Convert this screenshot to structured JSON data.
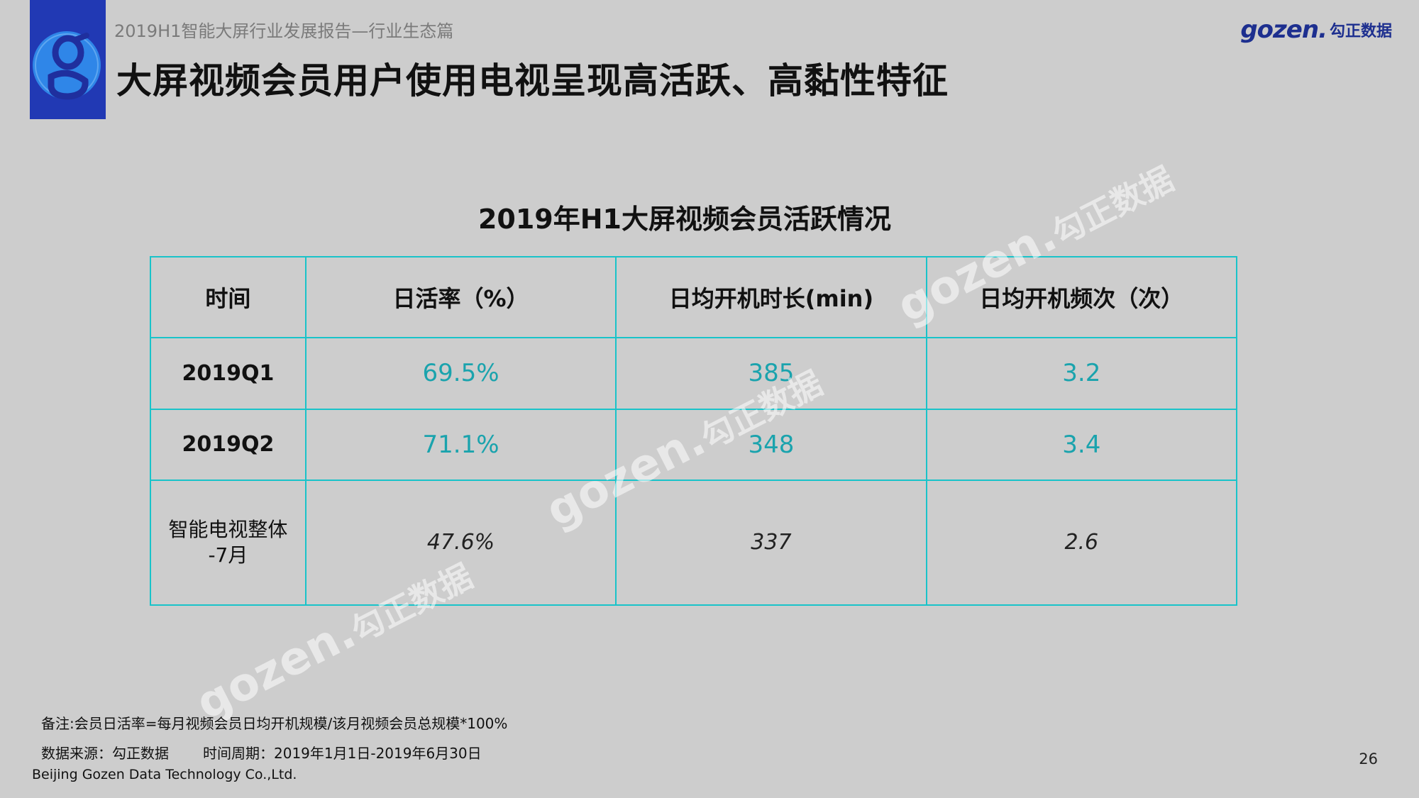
{
  "header": {
    "subtitle": "2019H1智能大屏行业发展报告—行业生态篇",
    "title": "大屏视频会员用户使用电视呈现高活跃、高黏性特征",
    "logo_icon": "gozen-g-logo-icon",
    "brand": {
      "word": "gozen.",
      "cn": "勾正数据"
    }
  },
  "table": {
    "title": "2019年H1大屏视频会员活跃情况",
    "headers": [
      "时间",
      "日活率（%）",
      "日均开机时长(min)",
      "日均开机频次（次）"
    ],
    "rows": [
      {
        "period": "2019Q1",
        "dau": "69.5%",
        "duration": "385",
        "frequency": "3.2"
      },
      {
        "period": "2019Q2",
        "dau": "71.1%",
        "duration": "348",
        "frequency": "3.4"
      },
      {
        "period_line1": "智能电视整体",
        "period_line2": "-7月",
        "dau": "47.6%",
        "duration": "337",
        "frequency": "2.6"
      }
    ],
    "colors": {
      "border": "#19c3c9",
      "value": "#1aa3ad"
    }
  },
  "watermark": {
    "word": "gozen.",
    "cn": "勾正数据"
  },
  "footer": {
    "note": "备注:会员日活率=每月视频会员日均开机规模/该月视频会员总规模*100%",
    "source": "数据来源：勾正数据",
    "period": "时间周期：2019年1月1日-2019年6月30日",
    "company": "Beijing Gozen Data Technology Co.,Ltd.",
    "page": "26"
  }
}
